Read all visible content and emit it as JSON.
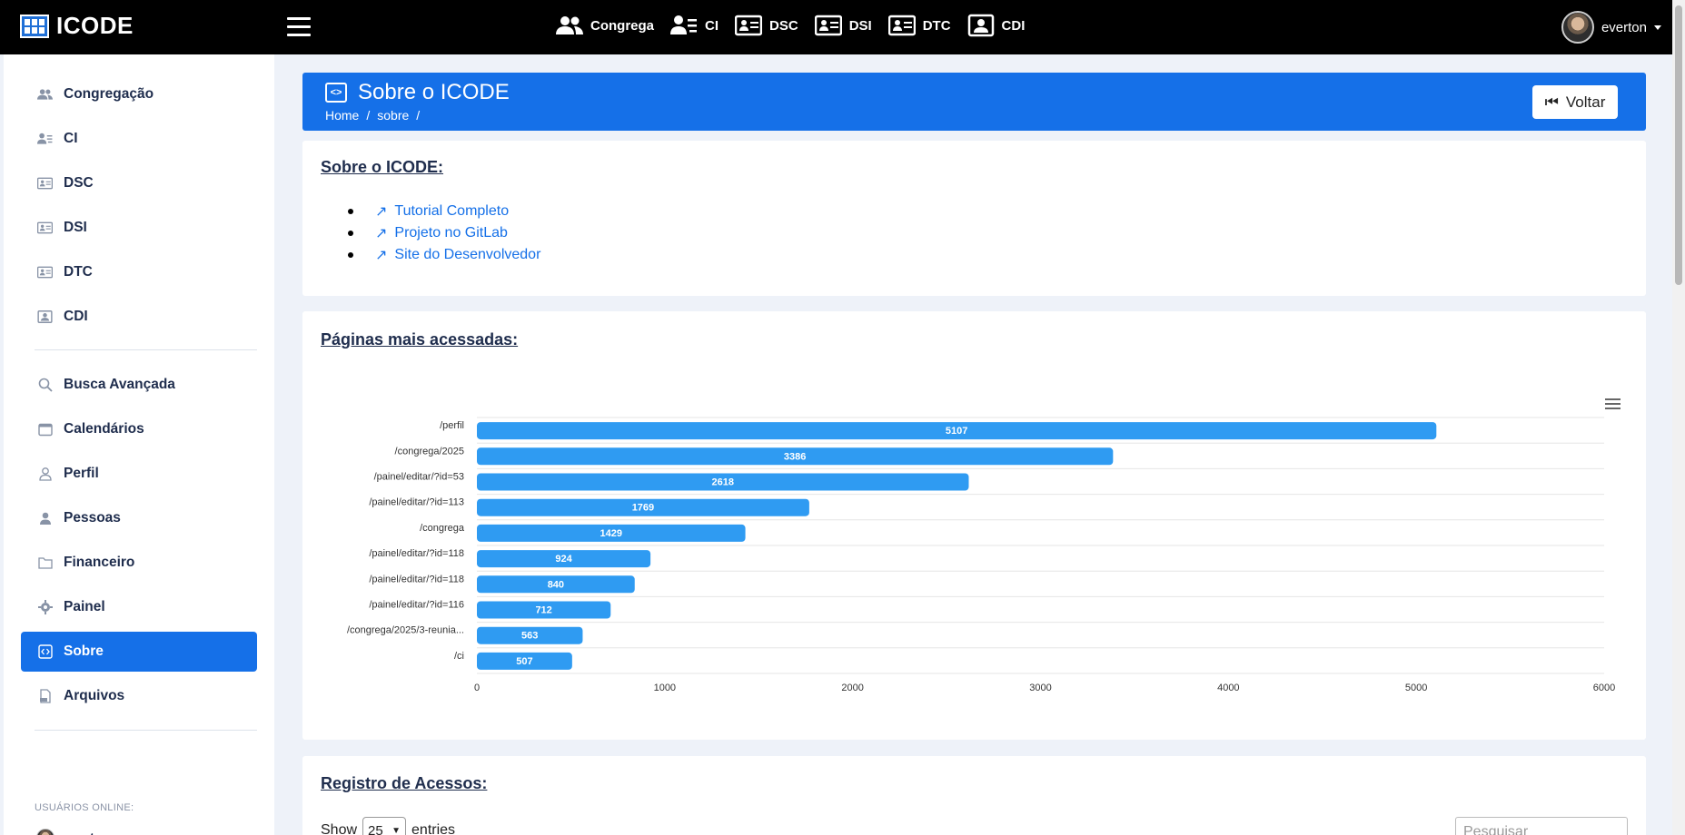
{
  "app": {
    "brand": "ICODE"
  },
  "topnav": [
    {
      "label": "Congrega",
      "icon": "users-icon"
    },
    {
      "label": "CI",
      "icon": "user-list-icon"
    },
    {
      "label": "DSC",
      "icon": "id-card-icon"
    },
    {
      "label": "DSI",
      "icon": "id-card-icon"
    },
    {
      "label": "DTC",
      "icon": "id-card-icon"
    },
    {
      "label": "CDI",
      "icon": "id-badge-icon"
    }
  ],
  "user": {
    "name": "everton"
  },
  "sidebar": {
    "items": [
      {
        "label": "Congregação",
        "icon": "users-icon"
      },
      {
        "label": "CI",
        "icon": "user-list-icon"
      },
      {
        "label": "DSC",
        "icon": "id-card-icon"
      },
      {
        "label": "DSI",
        "icon": "id-card-icon"
      },
      {
        "label": "DTC",
        "icon": "id-card-icon"
      },
      {
        "label": "CDI",
        "icon": "id-badge-icon"
      },
      {
        "label": "Busca Avançada",
        "icon": "search-icon"
      },
      {
        "label": "Calendários",
        "icon": "calendar-icon"
      },
      {
        "label": "Perfil",
        "icon": "user-outline-icon"
      },
      {
        "label": "Pessoas",
        "icon": "user-icon"
      },
      {
        "label": "Financeiro",
        "icon": "folder-icon"
      },
      {
        "label": "Painel",
        "icon": "gear-icon"
      },
      {
        "label": "Sobre",
        "icon": "code-icon",
        "active": true
      },
      {
        "label": "Arquivos",
        "icon": "pdf-file-icon"
      }
    ],
    "online_label": "USUÁRIOS ONLINE:",
    "online_users": [
      "everton"
    ]
  },
  "page_header": {
    "title": "Sobre o ICODE",
    "breadcrumb": [
      "Home",
      "sobre"
    ],
    "back_label": "Voltar"
  },
  "about_card": {
    "title": "Sobre o ICODE:",
    "links": [
      "Tutorial Completo",
      "Projeto no GitLab",
      "Site do Desenvolvedor"
    ]
  },
  "chart_card": {
    "title": "Páginas mais acessadas:"
  },
  "chart_data": {
    "type": "bar",
    "orientation": "horizontal",
    "categories": [
      "/perfil",
      "/congrega/2025",
      "/painel/editar/?id=53",
      "/painel/editar/?id=113",
      "/congrega",
      "/painel/editar/?id=118",
      "/painel/editar/?id=118",
      "/painel/editar/?id=116",
      "/congrega/2025/3-reunia...",
      "/ci"
    ],
    "values": [
      5107,
      3386,
      2618,
      1769,
      1429,
      924,
      840,
      712,
      563,
      507
    ],
    "xlim": [
      0,
      6000
    ],
    "xticks": [
      0,
      1000,
      2000,
      3000,
      4000,
      5000,
      6000
    ],
    "data_labels": true,
    "color": "#2f9bf2",
    "grid": true
  },
  "access_card": {
    "title": "Registro de Acessos:",
    "show_label": "Show",
    "entries_value": "25",
    "entries_label": "entries",
    "search_placeholder": "Pesquisar"
  }
}
